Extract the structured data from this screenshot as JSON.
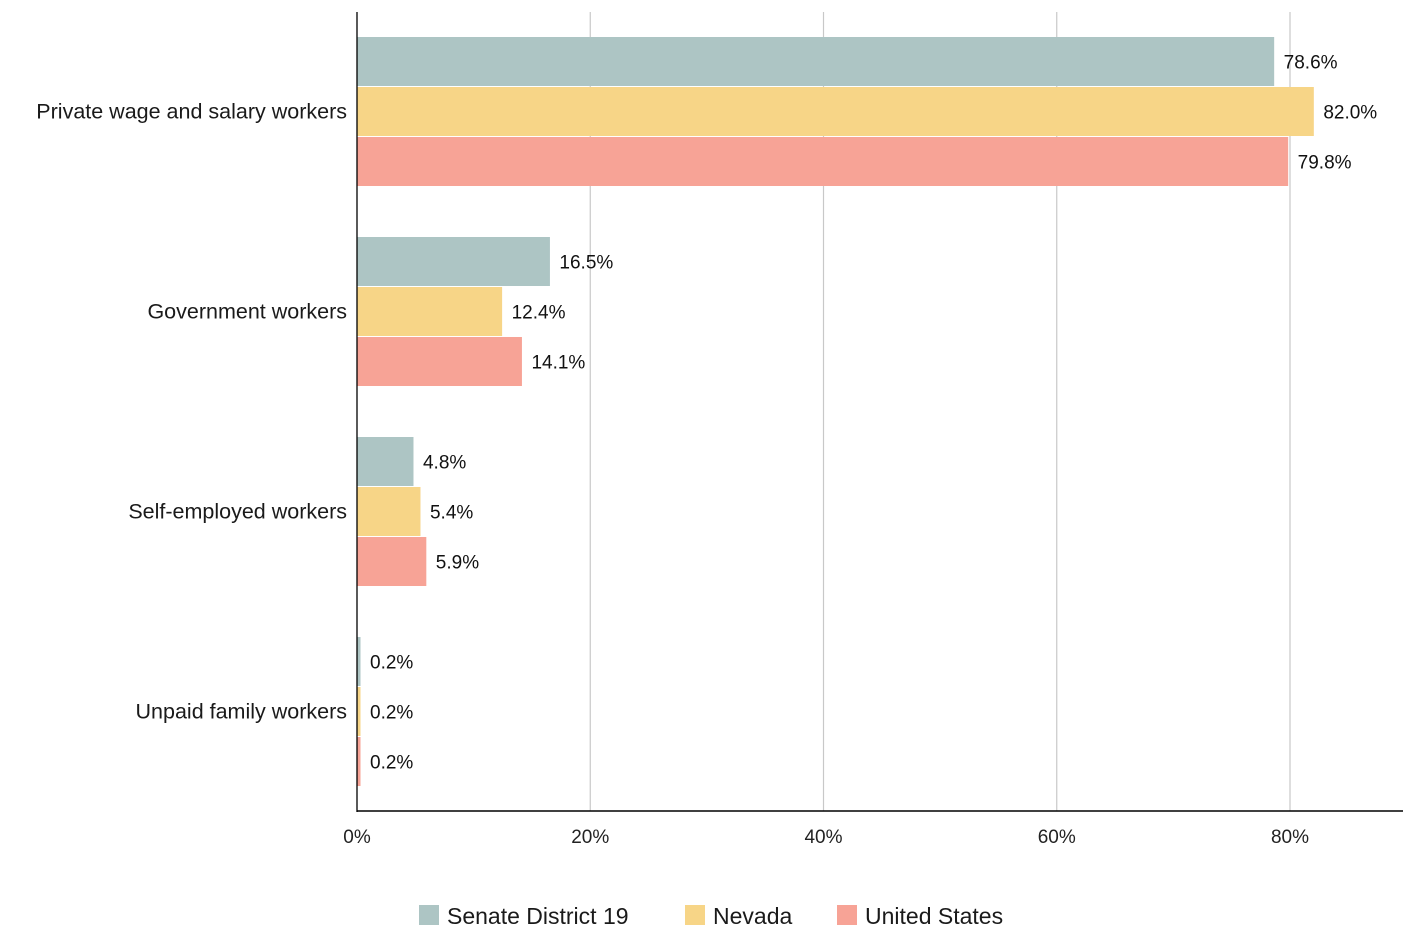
{
  "chart_data": {
    "type": "bar",
    "orientation": "horizontal",
    "title": "",
    "xlabel": "",
    "ylabel": "",
    "categories": [
      "Private wage and salary workers",
      "Government workers",
      "Self-employed workers",
      "Unpaid family workers"
    ],
    "series": [
      {
        "name": "Senate District 19",
        "color": "#adc5c4",
        "values": [
          78.6,
          16.5,
          4.8,
          0.2
        ]
      },
      {
        "name": "Nevada",
        "color": "#f7d587",
        "values": [
          82.0,
          12.4,
          5.4,
          0.2
        ]
      },
      {
        "name": "United States",
        "color": "#f7a396",
        "values": [
          79.8,
          14.1,
          5.9,
          0.2
        ]
      }
    ],
    "data_labels": [
      [
        "78.6%",
        "16.5%",
        "4.8%",
        "0.2%"
      ],
      [
        "82.0%",
        "12.4%",
        "5.4%",
        "0.2%"
      ],
      [
        "79.8%",
        "14.1%",
        "5.9%",
        "0.2%"
      ]
    ],
    "xticks": [
      0,
      20,
      40,
      60,
      80
    ],
    "xtick_labels": [
      "0%",
      "20%",
      "40%",
      "60%",
      "80%"
    ],
    "xlim": [
      0,
      90
    ],
    "grid": true,
    "legend": "bottom-center"
  }
}
